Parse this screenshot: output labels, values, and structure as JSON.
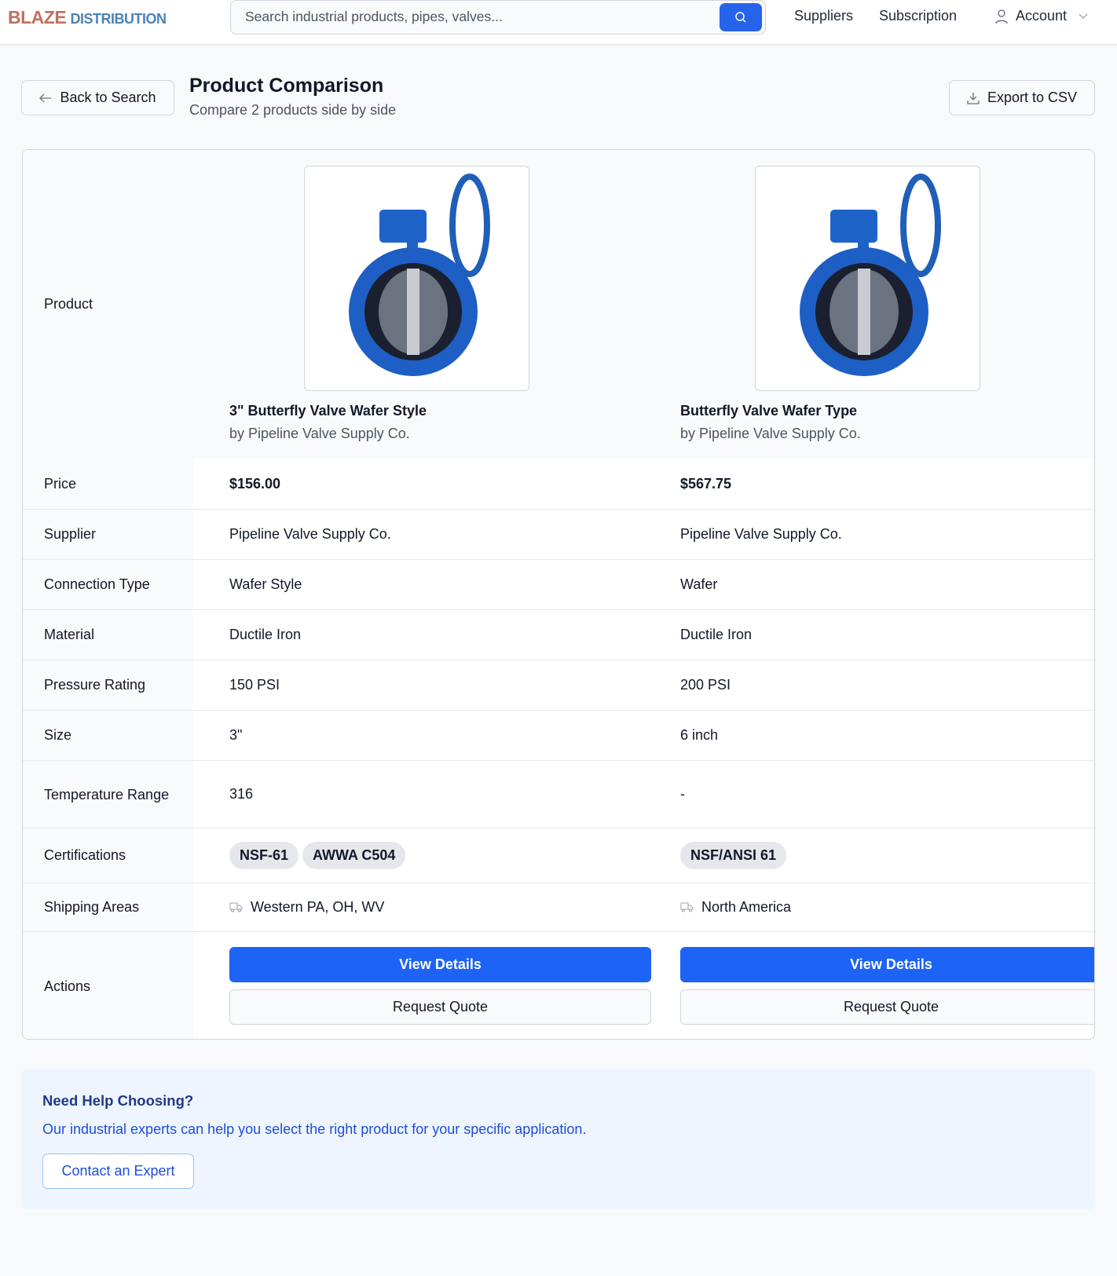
{
  "header": {
    "logo_a": "BLAZE",
    "logo_b": "DISTRIBUTION",
    "search_placeholder": "Search industrial products, pipes, valves...",
    "nav": [
      "Suppliers",
      "Subscription",
      "Account"
    ]
  },
  "page": {
    "back": "Back to Search",
    "title": "Product Comparison",
    "subtitle": "Compare 2 products side by side",
    "export": "Export to CSV"
  },
  "labels": {
    "product": "Product",
    "price": "Price",
    "supplier": "Supplier",
    "connection": "Connection Type",
    "material": "Material",
    "pressure": "Pressure Rating",
    "size": "Size",
    "temperature": "Temperature Range",
    "certifications": "Certifications",
    "shipping": "Shipping Areas",
    "actions": "Actions"
  },
  "products": [
    {
      "name": "3\" Butterfly Valve Wafer Style",
      "by": "by Pipeline Valve Supply Co.",
      "price": "$156.00",
      "supplier": "Pipeline Valve Supply Co.",
      "connection": "Wafer Style",
      "material": "Ductile Iron",
      "pressure": "150 PSI",
      "size": "3\"",
      "temperature": "316",
      "certifications": [
        "NSF-61",
        "AWWA C504"
      ],
      "shipping": "Western PA, OH, WV",
      "view": "View Details",
      "quote": "Request Quote"
    },
    {
      "name": "Butterfly Valve Wafer Type",
      "by": "by Pipeline Valve Supply Co.",
      "price": "$567.75",
      "supplier": "Pipeline Valve Supply Co.",
      "connection": "Wafer",
      "material": "Ductile Iron",
      "pressure": "200 PSI",
      "size": "6 inch",
      "temperature": "-",
      "certifications": [
        "NSF/ANSI 61"
      ],
      "shipping": "North America",
      "view": "View Details",
      "quote": "Request Quote"
    }
  ],
  "help": {
    "title": "Need Help Choosing?",
    "text": "Our industrial experts can help you select the right product for your specific application.",
    "button": "Contact an Expert"
  },
  "colors": {
    "primary": "#1d63f5",
    "logo_a": "#c0705f",
    "logo_b": "#4b82b8"
  }
}
